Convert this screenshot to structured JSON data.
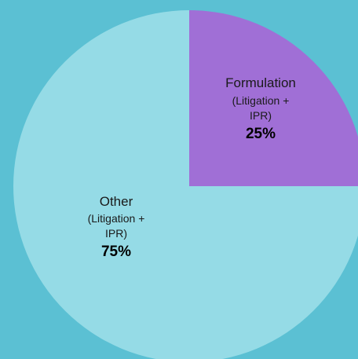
{
  "chart_data": {
    "type": "pie",
    "slices": [
      {
        "name": "Formulation",
        "subtitle_line1": "(Litigation +",
        "subtitle_line2": "IPR)",
        "value": 25,
        "value_label": "25%",
        "color": "#a06fd6"
      },
      {
        "name": "Other",
        "subtitle_line1": "(Litigation +",
        "subtitle_line2": "IPR)",
        "value": 75,
        "value_label": "75%",
        "color": "#95dbe6"
      }
    ],
    "background_color": "#5bc0d3",
    "start_angle": "12 o'clock, clockwise"
  }
}
